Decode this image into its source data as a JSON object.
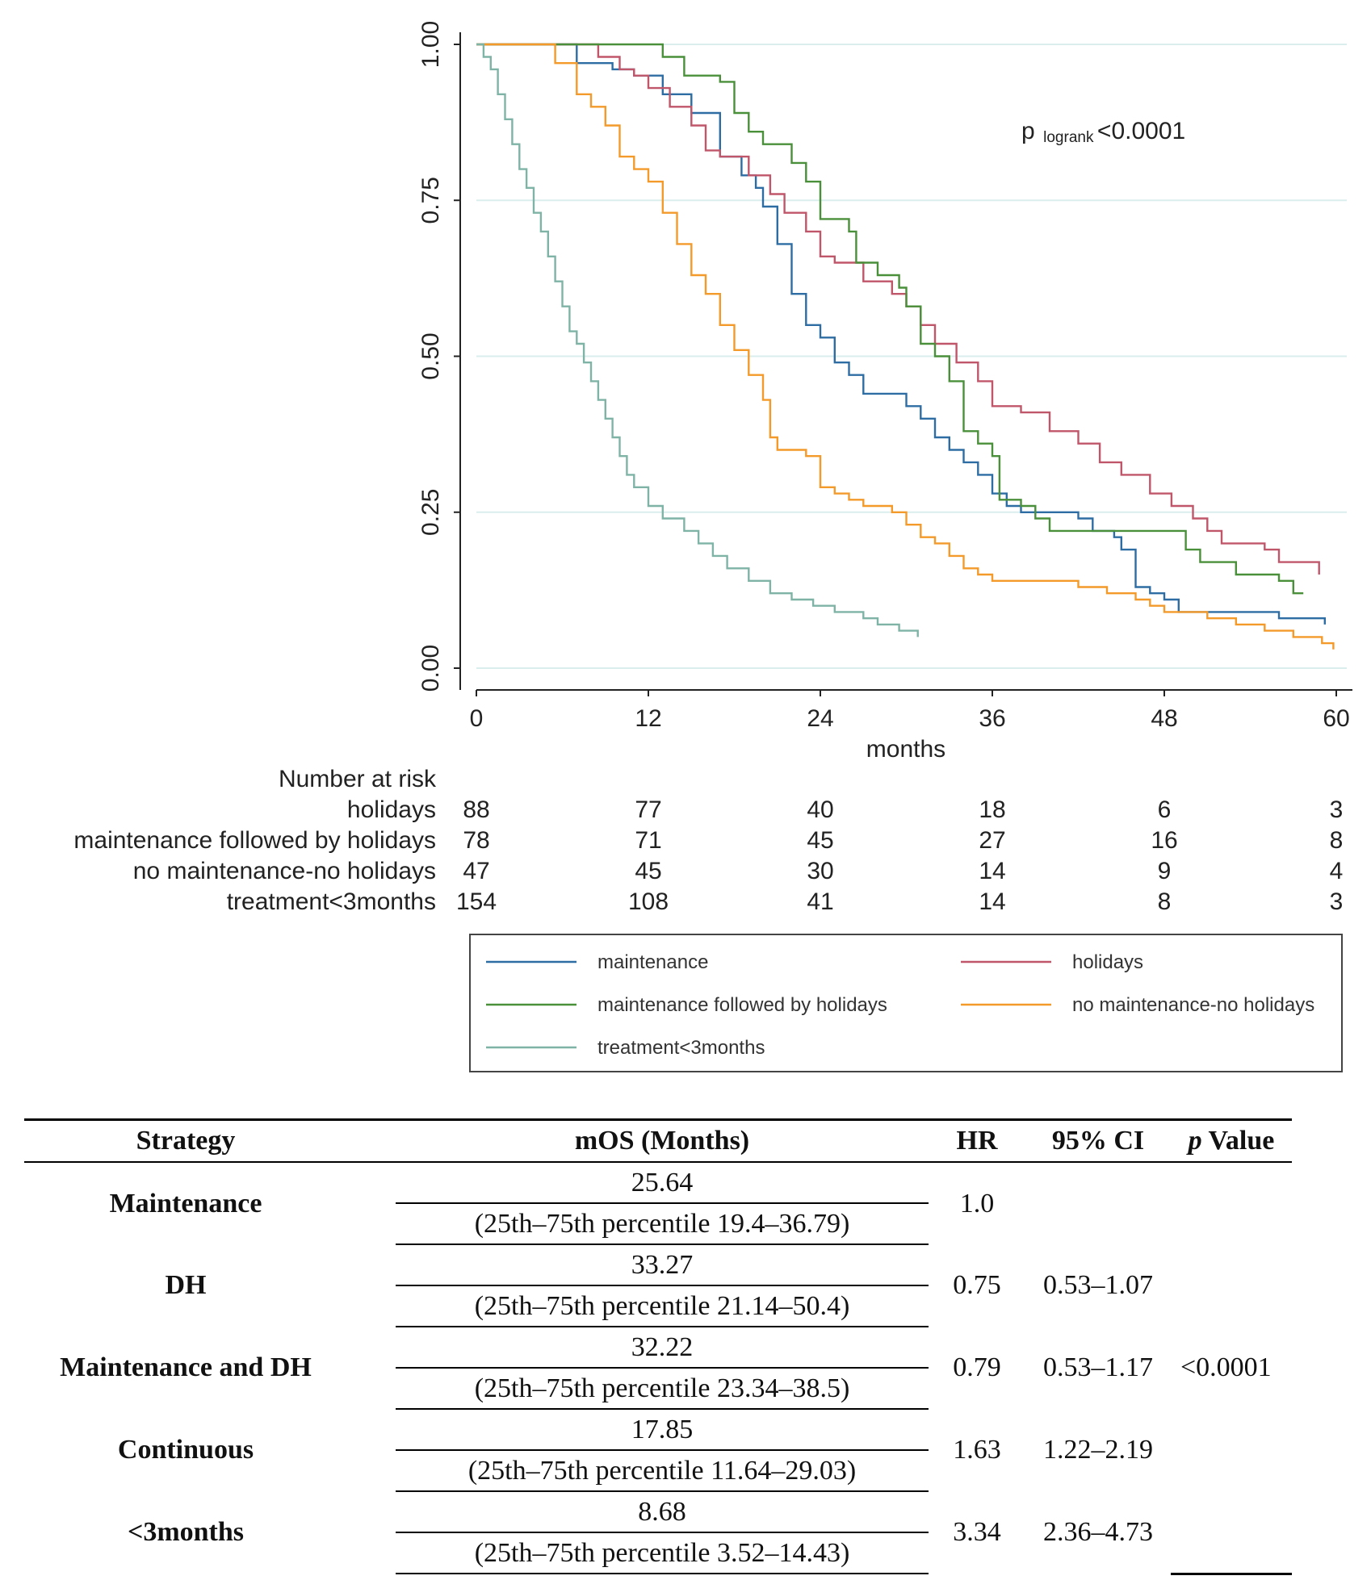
{
  "chart_data": {
    "type": "line",
    "subtype": "kaplan-meier",
    "annotation": {
      "text_main": "p",
      "text_sub": "logrank",
      "text_tail": "<0.0001"
    },
    "xlabel": "months",
    "ylabel": "",
    "xlim": [
      0,
      60
    ],
    "ylim": [
      0,
      1
    ],
    "x_ticks": [
      "0",
      "12",
      "24",
      "36",
      "48",
      "60"
    ],
    "y_ticks": [
      "0.00",
      "0.25",
      "0.50",
      "0.75",
      "1.00"
    ],
    "grid": "horizontal",
    "series": [
      {
        "name": "maintenance",
        "color": "#2e6da4",
        "points": [
          [
            0,
            1
          ],
          [
            6,
            1
          ],
          [
            7,
            0.97
          ],
          [
            9.5,
            0.96
          ],
          [
            11,
            0.95
          ],
          [
            13,
            0.92
          ],
          [
            15,
            0.89
          ],
          [
            17,
            0.82
          ],
          [
            18.5,
            0.79
          ],
          [
            19.5,
            0.77
          ],
          [
            20,
            0.74
          ],
          [
            21,
            0.68
          ],
          [
            22,
            0.6
          ],
          [
            23,
            0.55
          ],
          [
            24,
            0.53
          ],
          [
            25,
            0.49
          ],
          [
            26,
            0.47
          ],
          [
            27,
            0.44
          ],
          [
            28,
            0.44
          ],
          [
            30,
            0.42
          ],
          [
            31,
            0.4
          ],
          [
            32,
            0.37
          ],
          [
            33,
            0.35
          ],
          [
            34,
            0.33
          ],
          [
            35,
            0.31
          ],
          [
            36,
            0.28
          ],
          [
            37,
            0.26
          ],
          [
            38,
            0.25
          ],
          [
            42,
            0.24
          ],
          [
            43,
            0.22
          ],
          [
            44.5,
            0.21
          ],
          [
            45,
            0.19
          ],
          [
            46,
            0.13
          ],
          [
            47,
            0.12
          ],
          [
            48,
            0.11
          ],
          [
            49,
            0.09
          ],
          [
            56,
            0.08
          ],
          [
            57,
            0.08
          ],
          [
            59.2,
            0.07
          ]
        ]
      },
      {
        "name": "holidays",
        "color": "#c0566a",
        "points": [
          [
            0,
            1
          ],
          [
            7.8,
            1
          ],
          [
            8.5,
            0.98
          ],
          [
            10,
            0.96
          ],
          [
            11,
            0.95
          ],
          [
            12,
            0.93
          ],
          [
            13.5,
            0.9
          ],
          [
            15,
            0.87
          ],
          [
            16,
            0.83
          ],
          [
            17,
            0.82
          ],
          [
            19,
            0.79
          ],
          [
            20.5,
            0.76
          ],
          [
            21.5,
            0.73
          ],
          [
            23,
            0.7
          ],
          [
            24,
            0.66
          ],
          [
            25,
            0.65
          ],
          [
            27,
            0.62
          ],
          [
            29,
            0.6
          ],
          [
            30,
            0.58
          ],
          [
            31,
            0.55
          ],
          [
            32,
            0.52
          ],
          [
            33.5,
            0.49
          ],
          [
            35,
            0.46
          ],
          [
            36,
            0.42
          ],
          [
            38,
            0.41
          ],
          [
            40,
            0.38
          ],
          [
            42,
            0.36
          ],
          [
            43.5,
            0.33
          ],
          [
            45,
            0.31
          ],
          [
            47,
            0.28
          ],
          [
            48.5,
            0.26
          ],
          [
            50,
            0.24
          ],
          [
            51,
            0.22
          ],
          [
            52,
            0.2
          ],
          [
            55,
            0.19
          ],
          [
            56,
            0.17
          ],
          [
            58,
            0.17
          ],
          [
            58.8,
            0.15
          ]
        ]
      },
      {
        "name": "maintenance followed by holidays",
        "color": "#4a8f3a",
        "points": [
          [
            0,
            1
          ],
          [
            11.5,
            1
          ],
          [
            13,
            0.98
          ],
          [
            14.5,
            0.95
          ],
          [
            17,
            0.94
          ],
          [
            18,
            0.89
          ],
          [
            19,
            0.86
          ],
          [
            20,
            0.84
          ],
          [
            22,
            0.81
          ],
          [
            23,
            0.78
          ],
          [
            24,
            0.72
          ],
          [
            26,
            0.7
          ],
          [
            26.5,
            0.65
          ],
          [
            28,
            0.63
          ],
          [
            29.5,
            0.61
          ],
          [
            30,
            0.58
          ],
          [
            31,
            0.52
          ],
          [
            32,
            0.5
          ],
          [
            33,
            0.46
          ],
          [
            34,
            0.38
          ],
          [
            35,
            0.36
          ],
          [
            36,
            0.34
          ],
          [
            36.5,
            0.27
          ],
          [
            38,
            0.26
          ],
          [
            39,
            0.24
          ],
          [
            40,
            0.22
          ],
          [
            48,
            0.22
          ],
          [
            49.5,
            0.19
          ],
          [
            50.5,
            0.17
          ],
          [
            53,
            0.15
          ],
          [
            56,
            0.14
          ],
          [
            57,
            0.12
          ],
          [
            57.7,
            0.12
          ]
        ]
      },
      {
        "name": "no maintenance-no holidays",
        "color": "#f39a2a",
        "points": [
          [
            0,
            1
          ],
          [
            4.5,
            1
          ],
          [
            5.5,
            0.97
          ],
          [
            7,
            0.92
          ],
          [
            8,
            0.9
          ],
          [
            9,
            0.87
          ],
          [
            10,
            0.82
          ],
          [
            11,
            0.8
          ],
          [
            12,
            0.78
          ],
          [
            13,
            0.73
          ],
          [
            14,
            0.68
          ],
          [
            15,
            0.63
          ],
          [
            16,
            0.6
          ],
          [
            17,
            0.55
          ],
          [
            18,
            0.51
          ],
          [
            19,
            0.47
          ],
          [
            20,
            0.43
          ],
          [
            20.5,
            0.37
          ],
          [
            21,
            0.35
          ],
          [
            23,
            0.34
          ],
          [
            24,
            0.29
          ],
          [
            25,
            0.28
          ],
          [
            26,
            0.27
          ],
          [
            27,
            0.26
          ],
          [
            29,
            0.25
          ],
          [
            30,
            0.23
          ],
          [
            31,
            0.21
          ],
          [
            32,
            0.2
          ],
          [
            33,
            0.18
          ],
          [
            34,
            0.16
          ],
          [
            35,
            0.15
          ],
          [
            36,
            0.14
          ],
          [
            40,
            0.14
          ],
          [
            42,
            0.13
          ],
          [
            44,
            0.12
          ],
          [
            46,
            0.11
          ],
          [
            47,
            0.1
          ],
          [
            48,
            0.09
          ],
          [
            50,
            0.09
          ],
          [
            51,
            0.08
          ],
          [
            53,
            0.07
          ],
          [
            55,
            0.06
          ],
          [
            56,
            0.06
          ],
          [
            57,
            0.05
          ],
          [
            59,
            0.04
          ],
          [
            59.8,
            0.03
          ]
        ]
      },
      {
        "name": "treatment<3months",
        "color": "#7fb3a5",
        "points": [
          [
            0,
            1
          ],
          [
            0.5,
            0.98
          ],
          [
            1,
            0.96
          ],
          [
            1.5,
            0.92
          ],
          [
            2,
            0.88
          ],
          [
            2.5,
            0.84
          ],
          [
            3,
            0.8
          ],
          [
            3.5,
            0.77
          ],
          [
            4,
            0.73
          ],
          [
            4.5,
            0.7
          ],
          [
            5,
            0.66
          ],
          [
            5.5,
            0.62
          ],
          [
            6,
            0.58
          ],
          [
            6.5,
            0.54
          ],
          [
            7,
            0.52
          ],
          [
            7.5,
            0.49
          ],
          [
            8,
            0.46
          ],
          [
            8.5,
            0.43
          ],
          [
            9,
            0.4
          ],
          [
            9.5,
            0.37
          ],
          [
            10,
            0.34
          ],
          [
            10.5,
            0.31
          ],
          [
            11,
            0.29
          ],
          [
            12,
            0.26
          ],
          [
            13,
            0.24
          ],
          [
            14.5,
            0.22
          ],
          [
            15.5,
            0.2
          ],
          [
            16.5,
            0.18
          ],
          [
            17.5,
            0.16
          ],
          [
            19,
            0.14
          ],
          [
            20.5,
            0.12
          ],
          [
            22,
            0.11
          ],
          [
            23.5,
            0.1
          ],
          [
            25,
            0.09
          ],
          [
            27,
            0.08
          ],
          [
            28,
            0.07
          ],
          [
            29.5,
            0.06
          ],
          [
            30.8,
            0.05
          ]
        ]
      }
    ],
    "risk_table": {
      "title": "Number at risk",
      "rows": [
        {
          "label": "holidays",
          "values": [
            "88",
            "77",
            "40",
            "18",
            "6",
            "3"
          ]
        },
        {
          "label": "maintenance followed by holidays",
          "values": [
            "78",
            "71",
            "45",
            "27",
            "16",
            "8"
          ]
        },
        {
          "label": "no maintenance-no holidays",
          "values": [
            "47",
            "45",
            "30",
            "14",
            "9",
            "4"
          ]
        },
        {
          "label": "treatment<3months",
          "values": [
            "154",
            "108",
            "41",
            "14",
            "8",
            "3"
          ]
        }
      ]
    },
    "legend": {
      "placement": "bottom",
      "entries": [
        "maintenance",
        "holidays",
        "maintenance followed by holidays",
        "no maintenance-no holidays",
        "treatment<3months"
      ]
    }
  },
  "table": {
    "headers": [
      "Strategy",
      "mOS (Months)",
      "HR",
      "95% CI",
      "p Value"
    ],
    "header_p": "p",
    "header_value": "Value",
    "rows": [
      {
        "strategy": "Maintenance",
        "mos": "25.64",
        "range": "(25th–75th percentile 19.4–36.79)",
        "hr": "1.0",
        "ci": ""
      },
      {
        "strategy": "DH",
        "mos": "33.27",
        "range": "(25th–75th percentile 21.14–50.4)",
        "hr": "0.75",
        "ci": "0.53–1.07"
      },
      {
        "strategy": "Maintenance and DH",
        "mos": "32.22",
        "range": "(25th–75th percentile 23.34–38.5)",
        "hr": "0.79",
        "ci": "0.53–1.17"
      },
      {
        "strategy": "Continuous",
        "mos": "17.85",
        "range": "(25th–75th percentile 11.64–29.03)",
        "hr": "1.63",
        "ci": "1.22–2.19"
      },
      {
        "strategy": "<3months",
        "mos": "8.68",
        "range": "(25th–75th percentile 3.52–14.43)",
        "hr": "3.34",
        "ci": "2.36–4.73"
      }
    ],
    "p_value": "<0.0001"
  }
}
